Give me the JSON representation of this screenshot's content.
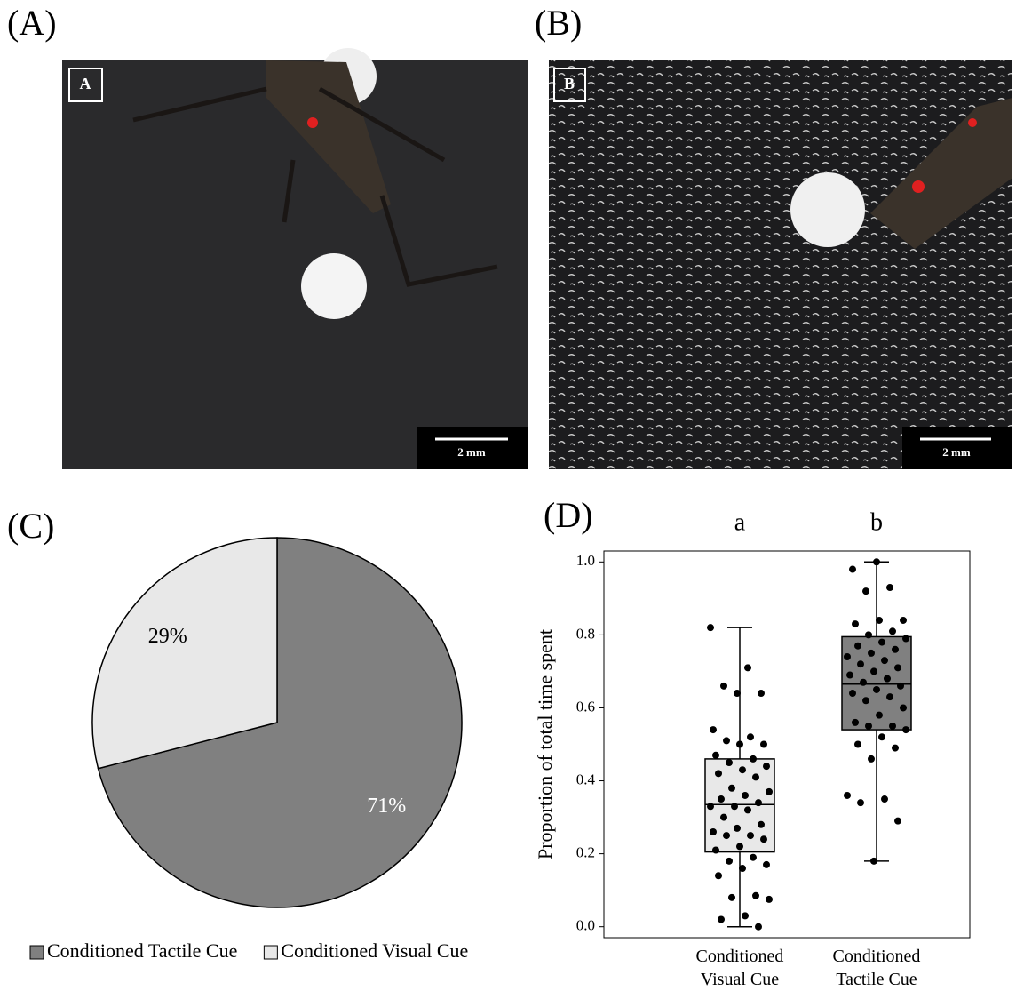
{
  "panels": {
    "A": {
      "label": "(A)",
      "inset": "A",
      "scale": "2 mm"
    },
    "B": {
      "label": "(B)",
      "inset": "B",
      "scale": "2 mm"
    },
    "C": {
      "label": "(C)"
    },
    "D": {
      "label": "(D)"
    }
  },
  "chart_data": [
    {
      "type": "pie",
      "categories": [
        "Conditioned Tactile Cue",
        "Conditioned Visual Cue"
      ],
      "values": [
        71,
        29
      ],
      "value_labels": [
        "71%",
        "29%"
      ],
      "colors": [
        "#808080",
        "#e8e8e8"
      ],
      "label_colors": [
        "#ffffff",
        "#000000"
      ],
      "legend": "bottom"
    },
    {
      "type": "box",
      "categories": [
        "Conditioned Visual Cue",
        "Conditioned Tactile Cue"
      ],
      "annotations": [
        "a",
        "b"
      ],
      "ylabel": "Proportion of total time spent",
      "ylim": [
        -0.03,
        1.03
      ],
      "yticks": [
        {
          "value": 0,
          "label": "0.0"
        },
        0.2,
        0.4,
        0.6,
        0.8,
        {
          "value": 1,
          "label": "1.0"
        }
      ],
      "point_color": "#000000",
      "boxes": [
        {
          "whislo": 0,
          "q1": 0.205,
          "med": 0.335,
          "q3": 0.46,
          "whishi": 0.82,
          "color": "#e8e8e8",
          "points": [
            0.82,
            0.71,
            0.66,
            0.64,
            0.64,
            0.54,
            0.52,
            0.51,
            0.5,
            0.5,
            0.47,
            0.46,
            0.45,
            0.44,
            0.43,
            0.42,
            0.41,
            0.38,
            0.37,
            0.36,
            0.35,
            0.34,
            0.33,
            0.33,
            0.32,
            0.3,
            0.28,
            0.27,
            0.26,
            0.25,
            0.25,
            0.24,
            0.22,
            0.21,
            0.19,
            0.18,
            0.17,
            0.16,
            0.14,
            0.085,
            0.08,
            0.075,
            0.03,
            0.02,
            0
          ]
        },
        {
          "whislo": 0.18,
          "q1": 0.54,
          "med": 0.665,
          "q3": 0.795,
          "whishi": 1.0,
          "color": "#808080",
          "points": [
            1.0,
            0.98,
            0.93,
            0.92,
            0.84,
            0.84,
            0.83,
            0.81,
            0.8,
            0.79,
            0.78,
            0.77,
            0.76,
            0.75,
            0.74,
            0.73,
            0.72,
            0.71,
            0.7,
            0.69,
            0.68,
            0.67,
            0.66,
            0.65,
            0.64,
            0.63,
            0.62,
            0.6,
            0.58,
            0.56,
            0.55,
            0.55,
            0.54,
            0.52,
            0.5,
            0.49,
            0.46,
            0.36,
            0.35,
            0.34,
            0.29,
            0.18
          ]
        }
      ]
    }
  ]
}
